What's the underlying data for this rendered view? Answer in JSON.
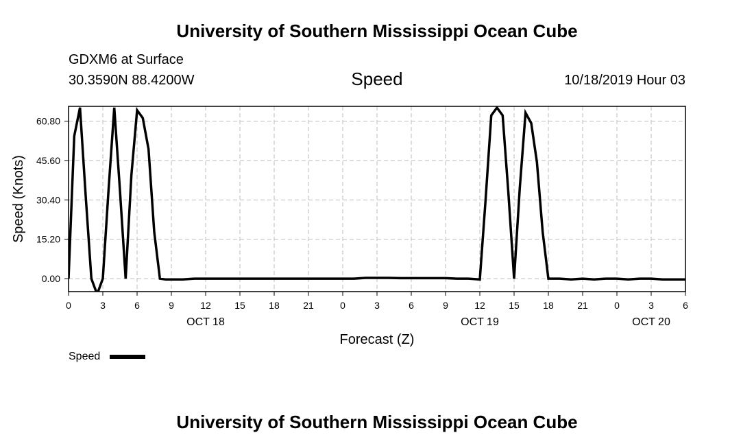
{
  "header": {
    "top_title": "University of Southern Mississippi Ocean Cube",
    "bottom_title": "University of Southern Mississippi Ocean Cube",
    "station": "GDXM6 at Surface",
    "coords": "30.3590N 88.4200W",
    "date": "10/18/2019 Hour 03"
  },
  "chart_data": {
    "type": "line",
    "title": "Speed",
    "xlabel": "Forecast (Z)",
    "ylabel": "Speed (Knots)",
    "xlim": [
      0,
      54
    ],
    "ylim": [
      -5,
      66.5
    ],
    "grid": true,
    "x_tick_values": [
      0,
      3,
      6,
      9,
      12,
      15,
      18,
      21,
      24,
      27,
      30,
      33,
      36,
      39,
      42,
      45,
      48,
      51,
      54
    ],
    "x_tick_labels": [
      "0",
      "3",
      "6",
      "9",
      "12",
      "15",
      "18",
      "21",
      "0",
      "3",
      "6",
      "9",
      "12",
      "15",
      "18",
      "21",
      "0",
      "3",
      "6"
    ],
    "y_tick_values": [
      0,
      15.2,
      30.4,
      45.6,
      60.8
    ],
    "y_tick_labels": [
      "0.00",
      "15.20",
      "30.40",
      "45.60",
      "60.80"
    ],
    "day_labels": [
      {
        "x": 12,
        "label": "OCT 18"
      },
      {
        "x": 36,
        "label": "OCT 19"
      },
      {
        "x": 51,
        "label": "OCT 20"
      }
    ],
    "legend": {
      "position": "bottom-left",
      "label": "Speed"
    },
    "series": [
      {
        "name": "Speed",
        "color": "#000000",
        "x": [
          0,
          0.5,
          1,
          1.5,
          2,
          2.5,
          3,
          3.5,
          4,
          4.5,
          5,
          5.5,
          6,
          6.5,
          7,
          7.5,
          8,
          8.5,
          9,
          10,
          11,
          12,
          13,
          14,
          15,
          16,
          17,
          18,
          19,
          20,
          21,
          22,
          23,
          24,
          25,
          26,
          27,
          28,
          29,
          30,
          31,
          32,
          33,
          34,
          35,
          36,
          36.5,
          37,
          37.5,
          38,
          38.5,
          39,
          39.5,
          40,
          40.5,
          41,
          41.5,
          42,
          42.5,
          43,
          44,
          45,
          46,
          47,
          48,
          49,
          50,
          51,
          52,
          53,
          54
        ],
        "values": [
          0,
          55,
          66,
          32,
          0,
          -6,
          0,
          34,
          66,
          34,
          0,
          40,
          65,
          62,
          50,
          18,
          0,
          -0.3,
          -0.3,
          -0.3,
          0,
          0,
          0,
          0,
          0,
          0,
          0,
          0,
          0,
          0,
          0,
          0,
          0,
          0,
          0,
          0.3,
          0.3,
          0.3,
          0.2,
          0.2,
          0.2,
          0.2,
          0.2,
          0,
          0,
          -0.3,
          30,
          63,
          66,
          63,
          33,
          0,
          35,
          64,
          60,
          45,
          18,
          0,
          0,
          0,
          -0.3,
          0,
          -0.3,
          0,
          0,
          -0.3,
          0,
          0,
          -0.3,
          -0.3,
          -0.3
        ]
      }
    ]
  }
}
